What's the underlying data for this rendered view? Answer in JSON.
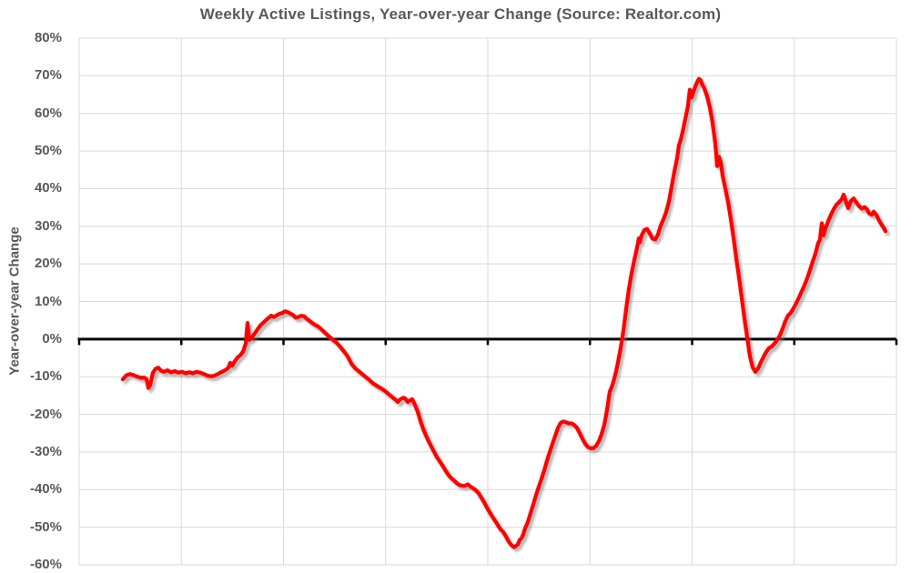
{
  "colors": {
    "line": "#FF0000",
    "grid": "#D9D9D9",
    "zero_line": "#000000",
    "text": "#595959",
    "background": "#FFFFFF"
  },
  "chart_data": {
    "type": "line",
    "title": "Weekly Active Listings, Year-over-year Change (Source: Realtor.com)",
    "xlabel": "",
    "ylabel": "Year-over-year Change",
    "ylim": [
      -60,
      80
    ],
    "grid": true,
    "legend_position": "none",
    "x_axis": {
      "tick_labels_visible": false,
      "vertical_gridline_count": 9,
      "zero_axis_ticks": true
    },
    "y_ticks": [
      {
        "label": "80%",
        "value": 80
      },
      {
        "label": "70%",
        "value": 70
      },
      {
        "label": "60%",
        "value": 60
      },
      {
        "label": "50%",
        "value": 50
      },
      {
        "label": "40%",
        "value": 40
      },
      {
        "label": "30%",
        "value": 30
      },
      {
        "label": "20%",
        "value": 20
      },
      {
        "label": "10%",
        "value": 10
      },
      {
        "label": "0%",
        "value": 0
      },
      {
        "label": "-10%",
        "value": -10
      },
      {
        "label": "-20%",
        "value": -20
      },
      {
        "label": "-30%",
        "value": -30
      },
      {
        "label": "-40%",
        "value": -40
      },
      {
        "label": "-50%",
        "value": -50
      },
      {
        "label": "-60%",
        "value": -60
      }
    ],
    "series": [
      {
        "name": "Weekly Active Listings YoY Change",
        "color": "#FF0000",
        "points": [
          [
            0.0535,
            -10.7
          ],
          [
            0.0579,
            -9.6
          ],
          [
            0.0624,
            -9.3
          ],
          [
            0.0668,
            -9.6
          ],
          [
            0.0713,
            -10.0
          ],
          [
            0.0757,
            -10.3
          ],
          [
            0.0791,
            -10.2
          ],
          [
            0.0824,
            -10.6
          ],
          [
            0.0846,
            -13.0
          ],
          [
            0.0869,
            -12.2
          ],
          [
            0.0902,
            -9.0
          ],
          [
            0.0935,
            -7.9
          ],
          [
            0.0969,
            -7.6
          ],
          [
            0.1002,
            -8.4
          ],
          [
            0.1036,
            -8.7
          ],
          [
            0.108,
            -8.3
          ],
          [
            0.1125,
            -8.8
          ],
          [
            0.1169,
            -8.5
          ],
          [
            0.1214,
            -8.9
          ],
          [
            0.1258,
            -8.7
          ],
          [
            0.1303,
            -9.1
          ],
          [
            0.1347,
            -8.8
          ],
          [
            0.1392,
            -9.1
          ],
          [
            0.1436,
            -8.7
          ],
          [
            0.1481,
            -8.9
          ],
          [
            0.1526,
            -9.3
          ],
          [
            0.157,
            -9.7
          ],
          [
            0.1615,
            -9.9
          ],
          [
            0.1659,
            -9.7
          ],
          [
            0.1704,
            -9.2
          ],
          [
            0.1748,
            -8.7
          ],
          [
            0.1793,
            -8.2
          ],
          [
            0.1826,
            -7.6
          ],
          [
            0.1848,
            -6.3
          ],
          [
            0.1871,
            -7.1
          ],
          [
            0.1904,
            -5.9
          ],
          [
            0.1938,
            -4.9
          ],
          [
            0.1971,
            -4.3
          ],
          [
            0.2004,
            -3.4
          ],
          [
            0.2038,
            -1.2
          ],
          [
            0.206,
            4.3
          ],
          [
            0.2082,
            -0.2
          ],
          [
            0.2116,
            0.5
          ],
          [
            0.2149,
            1.5
          ],
          [
            0.2183,
            2.6
          ],
          [
            0.2216,
            3.6
          ],
          [
            0.2261,
            4.5
          ],
          [
            0.2305,
            5.4
          ],
          [
            0.235,
            6.2
          ],
          [
            0.2383,
            5.9
          ],
          [
            0.2416,
            6.3
          ],
          [
            0.245,
            6.7
          ],
          [
            0.2483,
            6.9
          ],
          [
            0.2517,
            7.4
          ],
          [
            0.255,
            7.2
          ],
          [
            0.2584,
            6.8
          ],
          [
            0.2617,
            6.4
          ],
          [
            0.265,
            5.7
          ],
          [
            0.2684,
            5.9
          ],
          [
            0.2717,
            6.2
          ],
          [
            0.2751,
            6.1
          ],
          [
            0.2784,
            5.4
          ],
          [
            0.2817,
            4.9
          ],
          [
            0.2851,
            4.3
          ],
          [
            0.2884,
            3.8
          ],
          [
            0.2929,
            3.3
          ],
          [
            0.2973,
            2.4
          ],
          [
            0.3018,
            1.5
          ],
          [
            0.3062,
            0.6
          ],
          [
            0.3107,
            -0.2
          ],
          [
            0.3152,
            -1.0
          ],
          [
            0.3196,
            -2.1
          ],
          [
            0.3241,
            -3.3
          ],
          [
            0.3285,
            -4.6
          ],
          [
            0.333,
            -6.5
          ],
          [
            0.3374,
            -7.7
          ],
          [
            0.3419,
            -8.5
          ],
          [
            0.3463,
            -9.3
          ],
          [
            0.3508,
            -10.1
          ],
          [
            0.3552,
            -10.9
          ],
          [
            0.3597,
            -11.8
          ],
          [
            0.3641,
            -12.4
          ],
          [
            0.3686,
            -13.0
          ],
          [
            0.373,
            -13.6
          ],
          [
            0.3775,
            -14.4
          ],
          [
            0.3819,
            -15.2
          ],
          [
            0.3853,
            -15.8
          ],
          [
            0.3875,
            -16.2
          ],
          [
            0.3897,
            -16.7
          ],
          [
            0.3931,
            -16.0
          ],
          [
            0.3964,
            -15.6
          ],
          [
            0.3987,
            -15.7
          ],
          [
            0.402,
            -16.7
          ],
          [
            0.4053,
            -16.2
          ],
          [
            0.4076,
            -16.0
          ],
          [
            0.4109,
            -17.5
          ],
          [
            0.4143,
            -19.3
          ],
          [
            0.4176,
            -21.8
          ],
          [
            0.4209,
            -23.9
          ],
          [
            0.4243,
            -25.6
          ],
          [
            0.4276,
            -27.2
          ],
          [
            0.431,
            -28.6
          ],
          [
            0.4343,
            -30.0
          ],
          [
            0.4377,
            -31.4
          ],
          [
            0.4421,
            -32.8
          ],
          [
            0.4454,
            -33.9
          ],
          [
            0.4488,
            -35.1
          ],
          [
            0.4521,
            -36.2
          ],
          [
            0.4555,
            -37.0
          ],
          [
            0.4588,
            -37.6
          ],
          [
            0.4621,
            -38.3
          ],
          [
            0.4655,
            -38.8
          ],
          [
            0.4688,
            -39.0
          ],
          [
            0.4721,
            -39.0
          ],
          [
            0.4755,
            -38.6
          ],
          [
            0.4788,
            -39.2
          ],
          [
            0.4822,
            -39.7
          ],
          [
            0.4855,
            -40.2
          ],
          [
            0.4889,
            -41.0
          ],
          [
            0.4922,
            -42.2
          ],
          [
            0.4955,
            -43.4
          ],
          [
            0.4989,
            -44.8
          ],
          [
            0.5022,
            -46.0
          ],
          [
            0.5056,
            -47.2
          ],
          [
            0.5089,
            -48.3
          ],
          [
            0.5122,
            -49.4
          ],
          [
            0.5156,
            -50.6
          ],
          [
            0.5189,
            -51.3
          ],
          [
            0.5223,
            -52.5
          ],
          [
            0.5256,
            -53.8
          ],
          [
            0.529,
            -54.8
          ],
          [
            0.5323,
            -55.3
          ],
          [
            0.5345,
            -55.0
          ],
          [
            0.5367,
            -54.6
          ],
          [
            0.539,
            -53.4
          ],
          [
            0.5412,
            -53.0
          ],
          [
            0.5434,
            -51.9
          ],
          [
            0.5457,
            -50.3
          ],
          [
            0.549,
            -48.7
          ],
          [
            0.5523,
            -46.3
          ],
          [
            0.5557,
            -44.0
          ],
          [
            0.559,
            -41.5
          ],
          [
            0.5624,
            -39.3
          ],
          [
            0.5657,
            -37.2
          ],
          [
            0.569,
            -34.9
          ],
          [
            0.5724,
            -32.4
          ],
          [
            0.5757,
            -30.1
          ],
          [
            0.5791,
            -27.9
          ],
          [
            0.5824,
            -25.8
          ],
          [
            0.5857,
            -23.7
          ],
          [
            0.5891,
            -22.3
          ],
          [
            0.5924,
            -21.9
          ],
          [
            0.5958,
            -22.1
          ],
          [
            0.5991,
            -22.4
          ],
          [
            0.6024,
            -22.4
          ],
          [
            0.6058,
            -22.8
          ],
          [
            0.6091,
            -23.6
          ],
          [
            0.6125,
            -25.0
          ],
          [
            0.6158,
            -26.5
          ],
          [
            0.6191,
            -27.8
          ],
          [
            0.6225,
            -28.7
          ],
          [
            0.6258,
            -29.0
          ],
          [
            0.6292,
            -29.0
          ],
          [
            0.6325,
            -28.4
          ],
          [
            0.6359,
            -27.2
          ],
          [
            0.6392,
            -25.3
          ],
          [
            0.6425,
            -22.8
          ],
          [
            0.6459,
            -18.9
          ],
          [
            0.6492,
            -14.0
          ],
          [
            0.6526,
            -12.2
          ],
          [
            0.6559,
            -9.6
          ],
          [
            0.6592,
            -6.3
          ],
          [
            0.6626,
            -2.4
          ],
          [
            0.6659,
            2.2
          ],
          [
            0.6693,
            7.9
          ],
          [
            0.6726,
            13.2
          ],
          [
            0.6759,
            17.5
          ],
          [
            0.6793,
            21.0
          ],
          [
            0.6826,
            24.3
          ],
          [
            0.6849,
            26.8
          ],
          [
            0.686,
            25.7
          ],
          [
            0.6882,
            27.5
          ],
          [
            0.6915,
            29.0
          ],
          [
            0.6949,
            29.3
          ],
          [
            0.6982,
            28.1
          ],
          [
            0.7016,
            26.7
          ],
          [
            0.7049,
            26.5
          ],
          [
            0.7082,
            27.8
          ],
          [
            0.7116,
            30.2
          ],
          [
            0.7149,
            31.8
          ],
          [
            0.7183,
            33.8
          ],
          [
            0.7216,
            36.5
          ],
          [
            0.7249,
            40.5
          ],
          [
            0.7283,
            44.5
          ],
          [
            0.7316,
            48.0
          ],
          [
            0.7339,
            51.5
          ],
          [
            0.7361,
            53.0
          ],
          [
            0.7383,
            55.0
          ],
          [
            0.7416,
            58.5
          ],
          [
            0.745,
            62.0
          ],
          [
            0.7472,
            66.3
          ],
          [
            0.7494,
            64.2
          ],
          [
            0.7517,
            65.8
          ],
          [
            0.755,
            67.8
          ],
          [
            0.7584,
            69.2
          ],
          [
            0.7606,
            68.8
          ],
          [
            0.7628,
            67.5
          ],
          [
            0.765,
            66.6
          ],
          [
            0.7684,
            64.5
          ],
          [
            0.7717,
            61.6
          ],
          [
            0.7751,
            57.5
          ],
          [
            0.7784,
            52.0
          ],
          [
            0.7806,
            46.0
          ],
          [
            0.7828,
            48.5
          ],
          [
            0.7851,
            47.0
          ],
          [
            0.7873,
            43.5
          ],
          [
            0.7906,
            40.0
          ],
          [
            0.794,
            36.5
          ],
          [
            0.7973,
            32.0
          ],
          [
            0.8007,
            27.0
          ],
          [
            0.804,
            21.5
          ],
          [
            0.8073,
            16.5
          ],
          [
            0.8107,
            11.0
          ],
          [
            0.814,
            5.5
          ],
          [
            0.8174,
            0.5
          ],
          [
            0.8207,
            -4.5
          ],
          [
            0.8241,
            -7.5
          ],
          [
            0.8274,
            -8.7
          ],
          [
            0.8307,
            -7.8
          ],
          [
            0.8341,
            -6.2
          ],
          [
            0.8374,
            -4.7
          ],
          [
            0.8408,
            -3.4
          ],
          [
            0.8441,
            -2.4
          ],
          [
            0.8474,
            -2.0
          ],
          [
            0.8508,
            -1.2
          ],
          [
            0.8541,
            -0.2
          ],
          [
            0.8575,
            1.0
          ],
          [
            0.8608,
            2.8
          ],
          [
            0.8641,
            4.8
          ],
          [
            0.8675,
            6.3
          ],
          [
            0.8708,
            7.0
          ],
          [
            0.8742,
            8.2
          ],
          [
            0.8775,
            9.6
          ],
          [
            0.8808,
            11.1
          ],
          [
            0.8842,
            12.7
          ],
          [
            0.8875,
            14.3
          ],
          [
            0.8909,
            16.2
          ],
          [
            0.8942,
            18.3
          ],
          [
            0.8976,
            20.6
          ],
          [
            0.9009,
            22.7
          ],
          [
            0.9042,
            25.5
          ],
          [
            0.9065,
            26.4
          ],
          [
            0.9087,
            30.8
          ],
          [
            0.9109,
            27.6
          ],
          [
            0.9131,
            29.4
          ],
          [
            0.9165,
            31.3
          ],
          [
            0.9198,
            33.0
          ],
          [
            0.9232,
            34.5
          ],
          [
            0.9265,
            35.7
          ],
          [
            0.9299,
            36.4
          ],
          [
            0.9332,
            37.2
          ],
          [
            0.9354,
            38.4
          ],
          [
            0.9377,
            36.9
          ],
          [
            0.941,
            34.8
          ],
          [
            0.9443,
            36.7
          ],
          [
            0.9477,
            37.4
          ],
          [
            0.951,
            36.3
          ],
          [
            0.9544,
            35.3
          ],
          [
            0.9577,
            34.7
          ],
          [
            0.961,
            35.1
          ],
          [
            0.9644,
            34.4
          ],
          [
            0.9666,
            33.4
          ],
          [
            0.9699,
            33.1
          ],
          [
            0.9722,
            33.9
          ],
          [
            0.9755,
            33.0
          ],
          [
            0.9788,
            31.5
          ],
          [
            0.9822,
            30.3
          ],
          [
            0.9844,
            29.6
          ],
          [
            0.9866,
            28.7
          ]
        ]
      }
    ]
  }
}
